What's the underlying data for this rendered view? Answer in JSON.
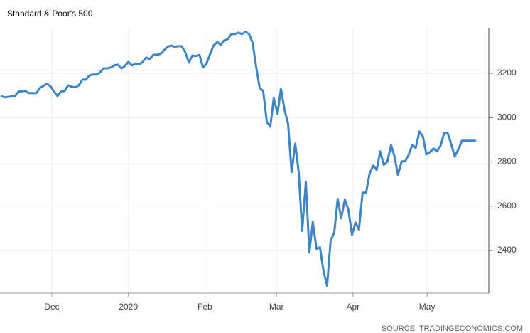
{
  "chart_data": {
    "type": "line",
    "title": "Standard & Poor's 500",
    "source": "SOURCE: TRADINGECONOMICS.COM",
    "x": [
      -20.7,
      -19.0,
      -17.2,
      -14.9,
      -13.5,
      -10.6,
      -9.2,
      -6.3,
      -4.9,
      -2.0,
      -0.6,
      0.9,
      2.3,
      3.7,
      5.2,
      6.6,
      8.0,
      9.5,
      10.9,
      12.4,
      13.8,
      15.2,
      16.7,
      18.1,
      19.5,
      21.0,
      22.4,
      23.9,
      25.3,
      26.7,
      28.2,
      29.6,
      31.0,
      32.5,
      33.9,
      35.3,
      36.8,
      38.2,
      39.7,
      41.1,
      42.5,
      44.0,
      45.4,
      46.8,
      48.3,
      49.7,
      51.1,
      52.6,
      54.0,
      55.5,
      56.9,
      58.3,
      59.8,
      61.2,
      62.6,
      64.1,
      65.5,
      67.0,
      68.4,
      69.8,
      71.3,
      72.7,
      74.1,
      75.6,
      77.0,
      78.4,
      79.9,
      81.3,
      82.8,
      84.2,
      85.6,
      87.1,
      88.5,
      89.9,
      91.4,
      92.8,
      94.3,
      95.7,
      97.1,
      98.6,
      100.0,
      101.4,
      102.9,
      104.3,
      105.7,
      107.2,
      108.6,
      110.1,
      111.5,
      112.9,
      114.4,
      115.8,
      117.2,
      118.7,
      120.1,
      121.6,
      123.0,
      124.4,
      125.9,
      127.3,
      128.7,
      130.2,
      131.6,
      133.0,
      134.5,
      135.9,
      137.4,
      138.8,
      140.2,
      141.7,
      143.1,
      144.5,
      146.0,
      147.4,
      148.9,
      150.3,
      151.7,
      153.2,
      154.6,
      156.0,
      157.5,
      158.9,
      160.3,
      161.8,
      163.2,
      164.7,
      166.1,
      167.5,
      171.8
    ],
    "series": [
      {
        "color": "#3d85c6",
        "values": [
          3097,
          3091,
          3094,
          3097,
          3117,
          3120,
          3110,
          3110,
          3133,
          3152,
          3142,
          3117,
          3097,
          3117,
          3120,
          3145,
          3139,
          3136,
          3145,
          3171,
          3171,
          3190,
          3194,
          3194,
          3203,
          3222,
          3222,
          3226,
          3235,
          3239,
          3222,
          3232,
          3251,
          3235,
          3245,
          3239,
          3251,
          3271,
          3264,
          3283,
          3283,
          3287,
          3303,
          3319,
          3325,
          3319,
          3322,
          3322,
          3296,
          3248,
          3280,
          3277,
          3283,
          3226,
          3242,
          3287,
          3325,
          3341,
          3328,
          3348,
          3354,
          3377,
          3377,
          3383,
          3377,
          3386,
          3377,
          3338,
          3226,
          3133,
          3120,
          2979,
          2959,
          3088,
          3017,
          3129,
          3033,
          2972,
          2754,
          2882,
          2754,
          2488,
          2709,
          2391,
          2529,
          2407,
          2414,
          2304,
          2240,
          2442,
          2481,
          2632,
          2545,
          2629,
          2584,
          2471,
          2526,
          2494,
          2661,
          2661,
          2747,
          2783,
          2763,
          2847,
          2786,
          2802,
          2876,
          2824,
          2741,
          2802,
          2802,
          2831,
          2876,
          2863,
          2937,
          2914,
          2834,
          2844,
          2860,
          2847,
          2873,
          2930,
          2930,
          2879,
          2824,
          2857,
          2895,
          2895,
          2895
        ]
      }
    ],
    "xlim": [
      -21,
      177
    ],
    "xticks": [
      {
        "value": 0,
        "label": "Dec"
      },
      {
        "value": 31,
        "label": "2020"
      },
      {
        "value": 62,
        "label": "Feb"
      },
      {
        "value": 91,
        "label": "Mar"
      },
      {
        "value": 122,
        "label": "Apr"
      },
      {
        "value": 152,
        "label": "May"
      }
    ],
    "ylim": [
      2207,
      3402
    ],
    "yticks": [
      2400,
      2600,
      2800,
      3000,
      3200
    ],
    "grid": true
  }
}
